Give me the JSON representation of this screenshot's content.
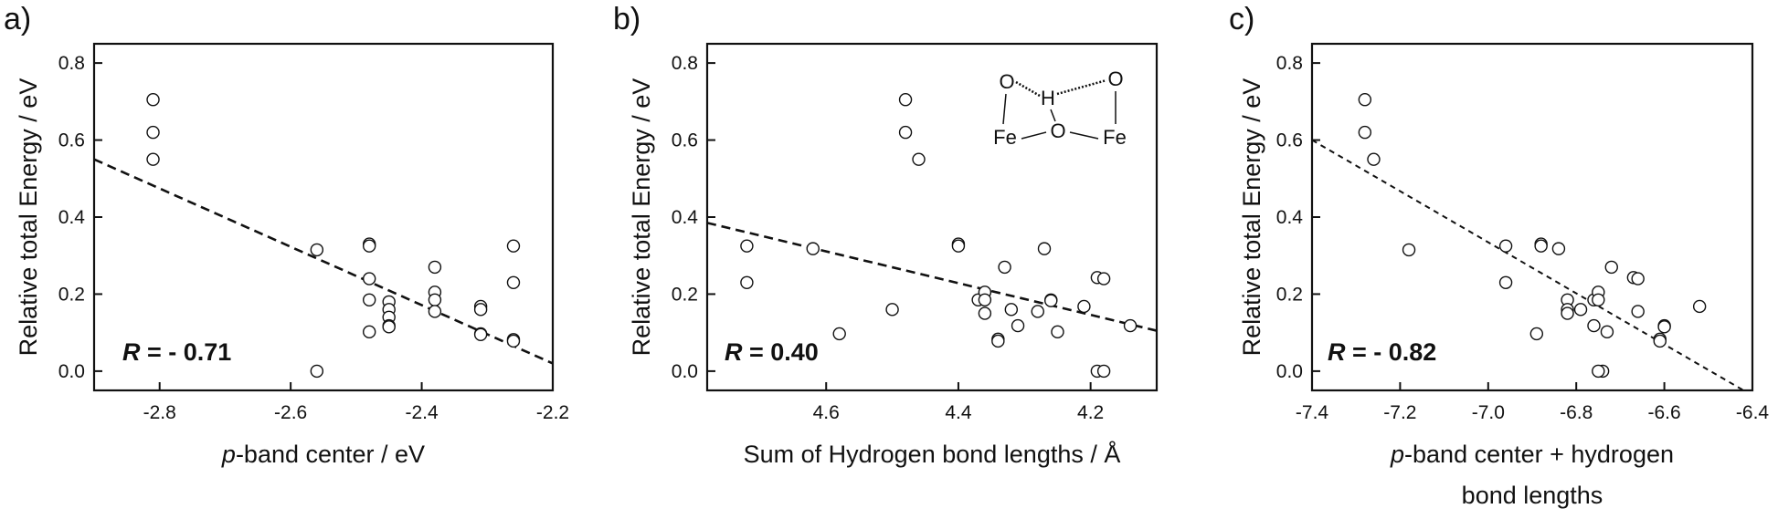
{
  "chart_data": [
    {
      "type": "scatter",
      "panel_label": "a)",
      "xlabel_italic": "p",
      "xlabel_rest": "-band center / eV",
      "ylabel": "Relative total Energy / eV",
      "annotation_italic": "R",
      "annotation_rest": " = - 0.71",
      "xlim": [
        -2.9,
        -2.2
      ],
      "ylim": [
        -0.05,
        0.85
      ],
      "xticks": [
        -2.8,
        -2.6,
        -2.4,
        -2.2
      ],
      "yticks": [
        0.0,
        0.2,
        0.4,
        0.6,
        0.8
      ],
      "x_decimals": 1,
      "points": [
        [
          -2.81,
          0.705
        ],
        [
          -2.81,
          0.62
        ],
        [
          -2.81,
          0.55
        ],
        [
          -2.56,
          0.315
        ],
        [
          -2.56,
          0.0
        ],
        [
          -2.48,
          0.33
        ],
        [
          -2.48,
          0.325
        ],
        [
          -2.48,
          0.24
        ],
        [
          -2.48,
          0.185
        ],
        [
          -2.48,
          0.102
        ],
        [
          -2.45,
          0.18
        ],
        [
          -2.45,
          0.16
        ],
        [
          -2.45,
          0.14
        ],
        [
          -2.45,
          0.118
        ],
        [
          -2.45,
          0.115
        ],
        [
          -2.38,
          0.27
        ],
        [
          -2.38,
          0.205
        ],
        [
          -2.38,
          0.185
        ],
        [
          -2.38,
          0.155
        ],
        [
          -2.31,
          0.168
        ],
        [
          -2.31,
          0.16
        ],
        [
          -2.31,
          0.097
        ],
        [
          -2.31,
          0.095
        ],
        [
          -2.26,
          0.325
        ],
        [
          -2.26,
          0.23
        ],
        [
          -2.26,
          0.082
        ],
        [
          -2.26,
          0.078
        ]
      ],
      "fit_line": [
        [
          -2.9,
          0.55
        ],
        [
          -2.2,
          0.02
        ]
      ]
    },
    {
      "type": "scatter",
      "panel_label": "b)",
      "xlabel_italic": "",
      "xlabel_rest": "Sum of Hydrogen bond lengths / Å",
      "ylabel": "Relative total Energy / eV",
      "annotation_italic": "R",
      "annotation_rest": " = 0.40",
      "xlim": [
        4.78,
        4.1
      ],
      "ylim": [
        -0.05,
        0.85
      ],
      "xticks": [
        4.6,
        4.4,
        4.2
      ],
      "yticks": [
        0.0,
        0.2,
        0.4,
        0.6,
        0.8
      ],
      "x_decimals": 1,
      "inset_labels": [
        "O",
        "H",
        "O",
        "Fe",
        "O",
        "Fe"
      ],
      "points": [
        [
          4.48,
          0.705
        ],
        [
          4.48,
          0.62
        ],
        [
          4.46,
          0.55
        ],
        [
          4.72,
          0.325
        ],
        [
          4.72,
          0.23
        ],
        [
          4.62,
          0.318
        ],
        [
          4.58,
          0.097
        ],
        [
          4.5,
          0.16
        ],
        [
          4.4,
          0.33
        ],
        [
          4.4,
          0.325
        ],
        [
          4.37,
          0.185
        ],
        [
          4.36,
          0.205
        ],
        [
          4.36,
          0.185
        ],
        [
          4.36,
          0.15
        ],
        [
          4.34,
          0.083
        ],
        [
          4.34,
          0.078
        ],
        [
          4.33,
          0.27
        ],
        [
          4.32,
          0.16
        ],
        [
          4.31,
          0.118
        ],
        [
          4.27,
          0.318
        ],
        [
          4.26,
          0.185
        ],
        [
          4.26,
          0.183
        ],
        [
          4.28,
          0.155
        ],
        [
          4.25,
          0.102
        ],
        [
          4.21,
          0.168
        ],
        [
          4.19,
          0.243
        ],
        [
          4.18,
          0.24
        ],
        [
          4.19,
          0.0
        ],
        [
          4.18,
          0.0
        ],
        [
          4.14,
          0.118
        ]
      ],
      "fit_line": [
        [
          4.78,
          0.385
        ],
        [
          4.1,
          0.105
        ]
      ]
    },
    {
      "type": "scatter",
      "panel_label": "c)",
      "xlabel_italic": "p",
      "xlabel_rest": "-band center + hydrogen",
      "xlabel_line2": "bond lengths",
      "ylabel": "Relative total Energy / eV",
      "annotation_italic": "R",
      "annotation_rest": " = - 0.82",
      "xlim": [
        -7.4,
        -6.4
      ],
      "ylim": [
        -0.05,
        0.85
      ],
      "xticks": [
        -7.4,
        -7.2,
        -7.0,
        -6.8,
        -6.6,
        -6.4
      ],
      "yticks": [
        0.0,
        0.2,
        0.4,
        0.6,
        0.8
      ],
      "x_decimals": 1,
      "points": [
        [
          -7.28,
          0.705
        ],
        [
          -7.28,
          0.62
        ],
        [
          -7.26,
          0.55
        ],
        [
          -7.18,
          0.315
        ],
        [
          -6.96,
          0.325
        ],
        [
          -6.96,
          0.23
        ],
        [
          -6.89,
          0.097
        ],
        [
          -6.88,
          0.33
        ],
        [
          -6.88,
          0.325
        ],
        [
          -6.84,
          0.318
        ],
        [
          -6.82,
          0.185
        ],
        [
          -6.82,
          0.16
        ],
        [
          -6.82,
          0.15
        ],
        [
          -6.79,
          0.16
        ],
        [
          -6.76,
          0.118
        ],
        [
          -6.76,
          0.185
        ],
        [
          -6.75,
          0.205
        ],
        [
          -6.75,
          0.185
        ],
        [
          -6.74,
          0.0
        ],
        [
          -6.75,
          0.0
        ],
        [
          -6.73,
          0.102
        ],
        [
          -6.72,
          0.27
        ],
        [
          -6.67,
          0.243
        ],
        [
          -6.66,
          0.24
        ],
        [
          -6.66,
          0.155
        ],
        [
          -6.61,
          0.083
        ],
        [
          -6.61,
          0.078
        ],
        [
          -6.6,
          0.118
        ],
        [
          -6.6,
          0.115
        ],
        [
          -6.52,
          0.168
        ]
      ],
      "fit_line": [
        [
          -7.4,
          0.6
        ],
        [
          -6.42,
          -0.05
        ]
      ]
    }
  ]
}
